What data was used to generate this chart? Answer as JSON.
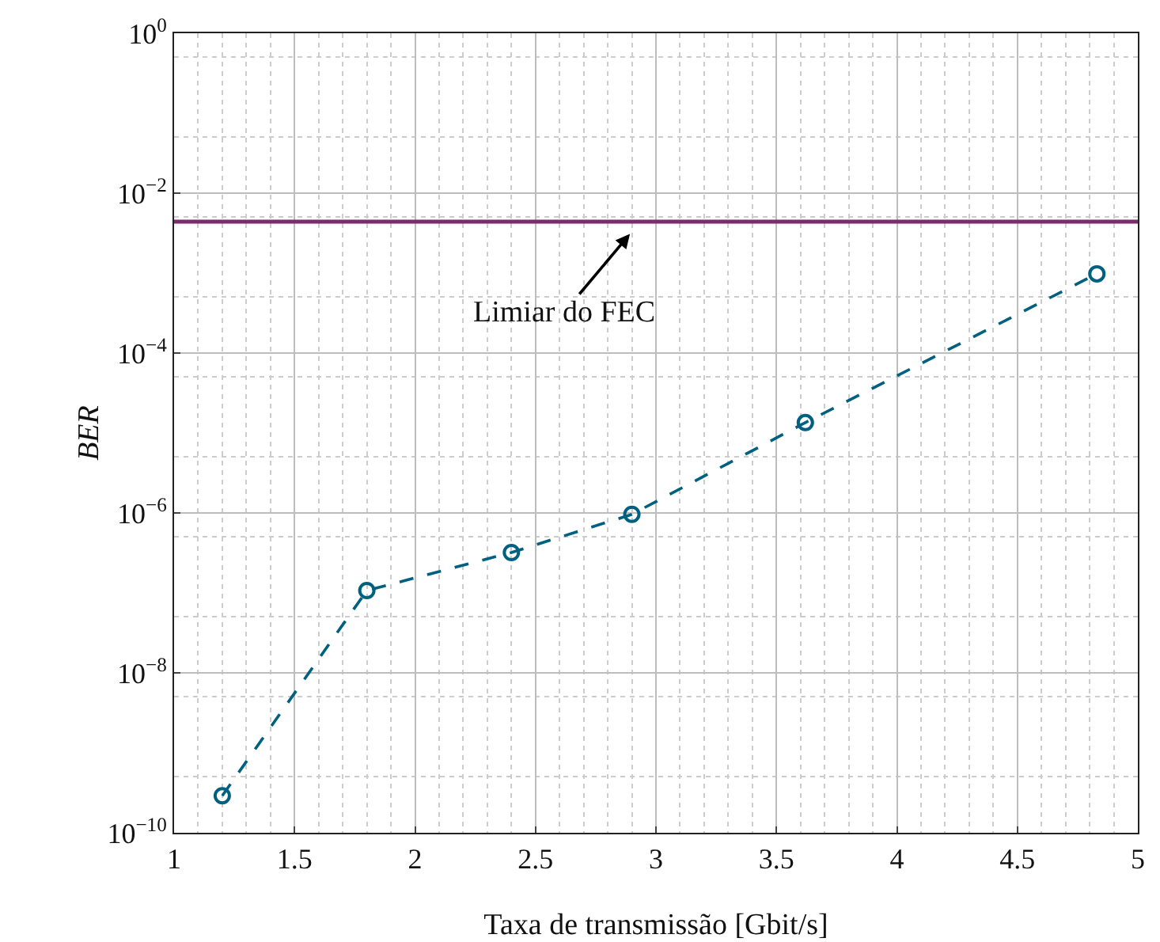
{
  "chart_data": {
    "type": "line",
    "xlabel": "Taxa de transmissão [Gbit/s]",
    "ylabel": "BER",
    "x": [
      1.2,
      1.8,
      2.4,
      2.9,
      3.62,
      4.83
    ],
    "series": [
      {
        "color": "#00607f",
        "values": [
          2.9e-10,
          1.07e-07,
          3.2e-07,
          9.6e-07,
          1.35e-05,
          0.00098
        ]
      }
    ],
    "xlim": [
      1,
      5
    ],
    "xticks": [
      1,
      1.5,
      2,
      2.5,
      3,
      3.5,
      4,
      4.5,
      5
    ],
    "ylim": [
      1e-10,
      1
    ],
    "yticks": [
      {
        "value": 1e-10,
        "label": "10$^{−10}$"
      },
      {
        "value": 1e-08,
        "label": "10$^{−8}$"
      },
      {
        "value": 1e-06,
        "label": "10$^{−6}$"
      },
      {
        "value": 0.0001,
        "label": "10$^{−4}$"
      },
      {
        "value": 0.01,
        "label": "10$^{−2}$"
      },
      {
        "value": 1,
        "label": "10$^{0}$"
      }
    ],
    "log": "y",
    "grid": true,
    "marker": "circle",
    "line_style": "dashed",
    "ref_lines": [
      {
        "axis": "y",
        "value": 0.0044,
        "color": "#7b2d6b"
      }
    ],
    "annotations": [
      "Limiar do FEC"
    ]
  }
}
